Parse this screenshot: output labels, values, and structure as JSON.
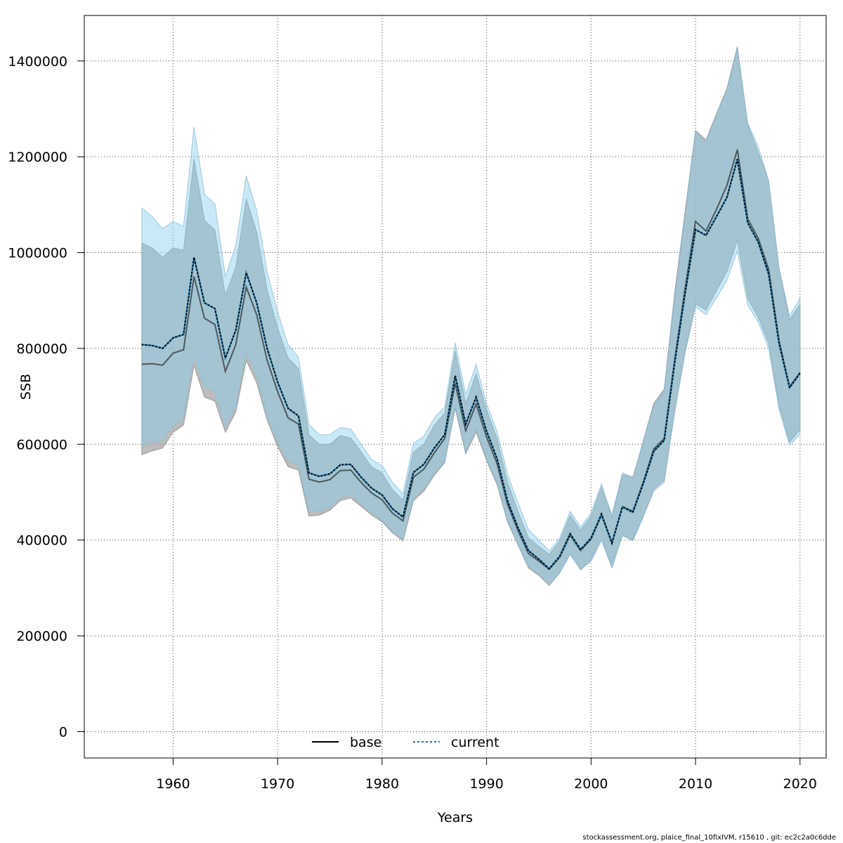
{
  "footnote": "stockassessment.org, plaice_final_10fixIVM, r15610 , git: ec2c2a0c6dde",
  "chart_data": {
    "type": "line",
    "title": "",
    "xlabel": "Years",
    "ylabel": "SSB",
    "xlim": [
      1951.5,
      2022.5
    ],
    "ylim": [
      -55000,
      1495000
    ],
    "x_ticks": [
      1960,
      1970,
      1980,
      1990,
      2000,
      2010,
      2020
    ],
    "y_ticks": [
      0,
      200000,
      400000,
      600000,
      800000,
      1000000,
      1200000,
      1400000
    ],
    "grid": true,
    "legend": {
      "position": "bottom-center",
      "entries": [
        "base",
        "current"
      ]
    },
    "colors": {
      "base_band": "#a6a6a6",
      "current_band": "#87ceeb",
      "base_line": "#000000",
      "current_line": "#1f6fa0"
    },
    "x": [
      1957,
      1958,
      1959,
      1960,
      1961,
      1962,
      1963,
      1964,
      1965,
      1966,
      1967,
      1968,
      1969,
      1970,
      1971,
      1972,
      1973,
      1974,
      1975,
      1976,
      1977,
      1978,
      1979,
      1980,
      1981,
      1982,
      1983,
      1984,
      1985,
      1986,
      1987,
      1988,
      1989,
      1990,
      1991,
      1992,
      1993,
      1994,
      1995,
      1996,
      1997,
      1998,
      1999,
      2000,
      2001,
      2002,
      2003,
      2004,
      2005,
      2006,
      2007,
      2008,
      2009,
      2010,
      2011,
      2012,
      2013,
      2014,
      2015,
      2016,
      2017,
      2018,
      2019,
      2020
    ],
    "series": [
      {
        "name": "base",
        "values": [
          767000,
          768000,
          765000,
          790000,
          797000,
          950000,
          863000,
          850000,
          752000,
          808000,
          928000,
          870000,
          775000,
          710000,
          655000,
          642000,
          527000,
          521000,
          526000,
          545000,
          546000,
          520000,
          498000,
          484000,
          456000,
          440000,
          531000,
          548000,
          582000,
          612000,
          727000,
          628000,
          684000,
          615000,
          560000,
          475000,
          420000,
          372000,
          356000,
          339000,
          364000,
          410000,
          378000,
          402000,
          452000,
          393000,
          470000,
          460000,
          521000,
          590000,
          612000,
          775000,
          925000,
          1065000,
          1045000,
          1090000,
          1140000,
          1215000,
          1070000,
          1030000,
          965000,
          815000,
          720000,
          750000
        ],
        "lower": [
          578000,
          586000,
          592000,
          625000,
          640000,
          764000,
          698000,
          690000,
          625000,
          667000,
          775000,
          728000,
          650000,
          595000,
          553000,
          546000,
          450000,
          452000,
          462000,
          482000,
          488000,
          470000,
          452000,
          438000,
          415000,
          398000,
          482000,
          502000,
          535000,
          562000,
          675000,
          580000,
          625000,
          566000,
          516000,
          438000,
          390000,
          342000,
          326000,
          305000,
          331000,
          370000,
          338000,
          356000,
          400000,
          342000,
          410000,
          400000,
          450000,
          505000,
          525000,
          670000,
          795000,
          893000,
          880000,
          920000,
          960000,
          1025000,
          904000,
          865000,
          810000,
          680000,
          604000,
          630000
        ],
        "upper": [
          1020000,
          1010000,
          990000,
          1010000,
          1005000,
          1195000,
          1068000,
          1047000,
          911000,
          970000,
          1112000,
          1043000,
          922000,
          843000,
          780000,
          758000,
          620000,
          600000,
          600000,
          618000,
          613000,
          584000,
          553000,
          540000,
          505000,
          483000,
          584000,
          600000,
          640000,
          665000,
          795000,
          685000,
          747000,
          672000,
          612000,
          521000,
          460000,
          405000,
          387000,
          370000,
          398000,
          452000,
          420000,
          450000,
          510000,
          447000,
          537000,
          530000,
          607000,
          685000,
          715000,
          915000,
          1085000,
          1255000,
          1235000,
          1290000,
          1342000,
          1430000,
          1267000,
          1210000,
          1150000,
          965000,
          860000,
          892000
        ]
      },
      {
        "name": "current",
        "values": [
          808000,
          806000,
          800000,
          822000,
          829000,
          990000,
          895000,
          883000,
          780000,
          838000,
          958000,
          895000,
          800000,
          730000,
          675000,
          659000,
          540000,
          533000,
          538000,
          557000,
          558000,
          531000,
          508000,
          494000,
          465000,
          448000,
          541000,
          558000,
          592000,
          620000,
          743000,
          642000,
          698000,
          627000,
          570000,
          482000,
          426000,
          378000,
          360000,
          340000,
          366000,
          413000,
          380000,
          404000,
          454000,
          394000,
          469000,
          458000,
          518000,
          585000,
          608000,
          770000,
          915000,
          1048000,
          1036000,
          1075000,
          1115000,
          1195000,
          1062000,
          1022000,
          955000,
          810000,
          718000,
          748000
        ],
        "lower": [
          597000,
          604000,
          608000,
          637000,
          653000,
          782000,
          718000,
          710000,
          637000,
          678000,
          792000,
          742000,
          660000,
          605000,
          565000,
          557000,
          460000,
          460000,
          468000,
          488000,
          494000,
          475000,
          457000,
          440000,
          418000,
          402000,
          487000,
          506000,
          540000,
          565000,
          680000,
          586000,
          632000,
          570000,
          520000,
          441000,
          391000,
          345000,
          328000,
          306000,
          331000,
          370000,
          338000,
          356000,
          400000,
          342000,
          409000,
          398000,
          448000,
          502000,
          520000,
          665000,
          790000,
          887000,
          870000,
          905000,
          942000,
          1003000,
          890000,
          855000,
          800000,
          672000,
          598000,
          620000
        ],
        "upper": [
          1093000,
          1075000,
          1050000,
          1065000,
          1055000,
          1262000,
          1122000,
          1102000,
          950000,
          1015000,
          1160000,
          1088000,
          960000,
          877000,
          808000,
          782000,
          641000,
          620000,
          620000,
          635000,
          632000,
          600000,
          568000,
          556000,
          520000,
          497000,
          602000,
          617000,
          655000,
          678000,
          812000,
          704000,
          767000,
          685000,
          627000,
          538000,
          478000,
          422000,
          400000,
          377000,
          405000,
          460000,
          427000,
          457000,
          517000,
          452000,
          540000,
          532000,
          605000,
          680000,
          710000,
          903000,
          1075000,
          1250000,
          1230000,
          1288000,
          1338000,
          1425000,
          1270000,
          1222000,
          1150000,
          968000,
          868000,
          905000
        ]
      }
    ]
  }
}
